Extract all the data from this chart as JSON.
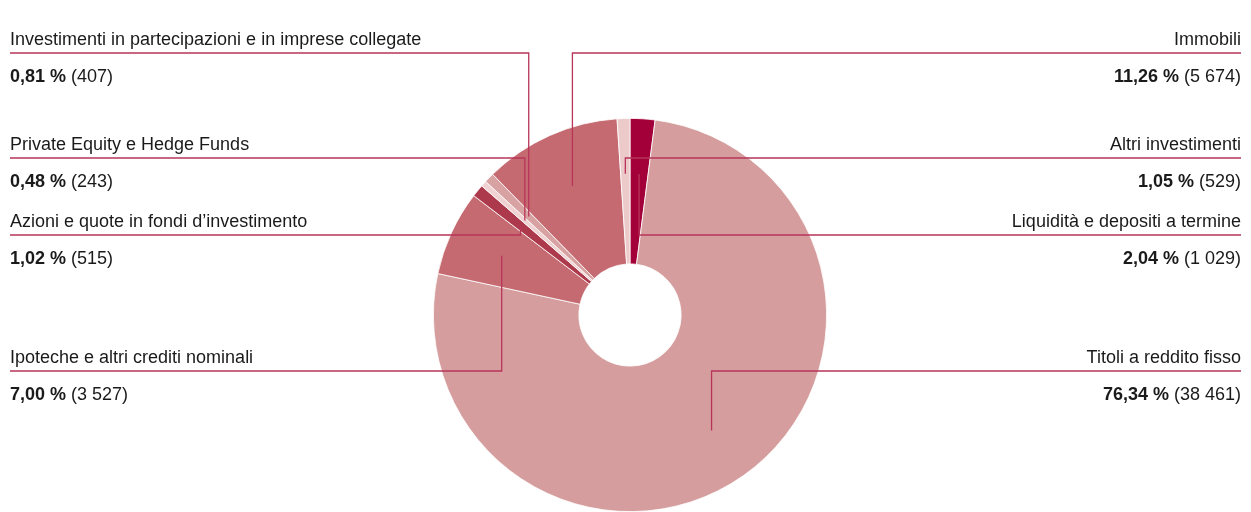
{
  "chart_data": {
    "type": "donut",
    "categories": [
      "Liquidità e depositi a termine",
      "Titoli a reddito fisso",
      "Ipoteche e altri crediti nominali",
      "Azioni e quote in fondi d’investimento",
      "Private Equity e Hedge Funds",
      "Investimenti in partecipazioni e in imprese collegate",
      "Immobili",
      "Altri investimenti"
    ],
    "values": [
      2.04,
      76.34,
      7.0,
      1.02,
      0.48,
      0.81,
      11.26,
      1.05
    ],
    "colors": [
      "#a3003a",
      "#d59d9d",
      "#c46a70",
      "#ad3a4c",
      "#f0d2d2",
      "#d8a2a2",
      "#c46a70",
      "#edcaca"
    ],
    "value_labels": [
      "2,04 % (1 029)",
      "76,34 % (38 461)",
      "7,00 % (3 527)",
      "1,02 % (515)",
      "0,48 % (243)",
      "0,81 % (407)",
      "11,26 % (5 674)",
      "1,05 % (529)"
    ]
  }
}
